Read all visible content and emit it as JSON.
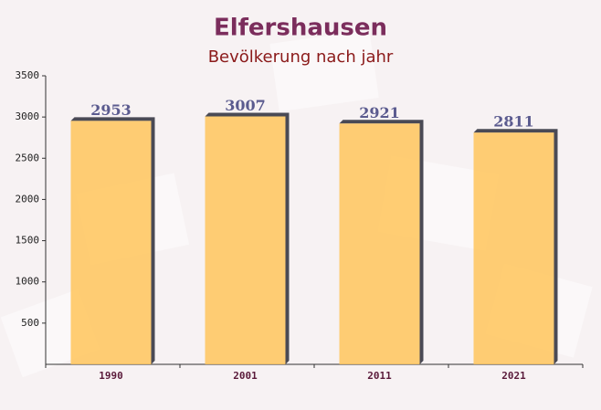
{
  "chart_data": {
    "type": "bar",
    "title": "Elfershausen",
    "subtitle": "Bevölkerung nach jahr",
    "categories": [
      "1990",
      "2001",
      "2011",
      "2021"
    ],
    "values": [
      2953,
      3007,
      2921,
      2811
    ],
    "color": "#ffc55c",
    "ylim": [
      0,
      3500
    ],
    "yticks": [
      500,
      1000,
      1500,
      2000,
      2500,
      3000,
      3500
    ]
  }
}
